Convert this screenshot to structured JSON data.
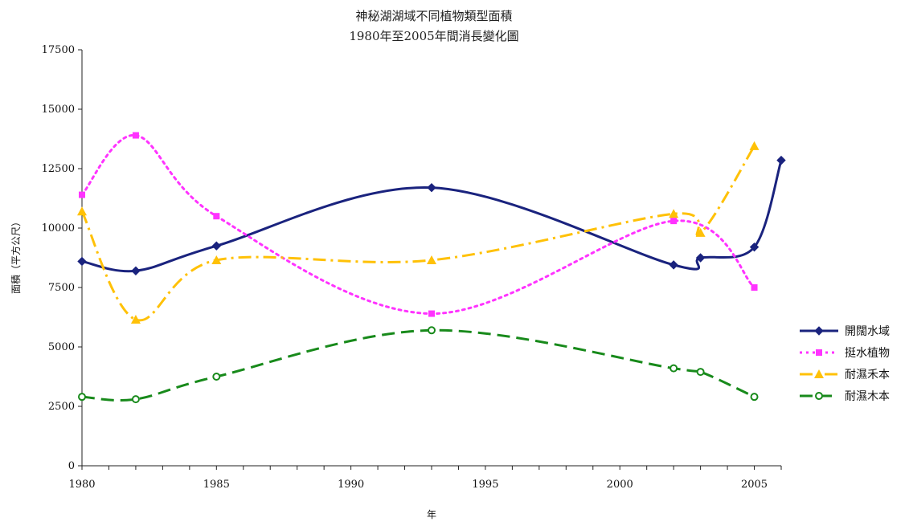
{
  "chart_data": {
    "type": "line",
    "title": "神秘湖湖域不同植物類型面積",
    "subtitle": "1980年至2005年間消長變化圖",
    "xlabel": "年",
    "ylabel": "面積（平方公尺）",
    "xlim": [
      1980,
      2006
    ],
    "ylim": [
      0,
      17500
    ],
    "xticks": [
      "1980",
      "1985",
      "1990",
      "1995",
      "2000",
      "2005"
    ],
    "yticks": [
      "0",
      "2500",
      "5000",
      "7500",
      "10000",
      "12500",
      "15000",
      "17500"
    ],
    "grid": false,
    "legend_position": "right",
    "series": [
      {
        "name": "開闊水域",
        "color": "#1a237e",
        "dash": "solid",
        "marker": "diamond",
        "x": [
          1980,
          1982,
          1985,
          1993,
          2002,
          2003,
          2005,
          2006
        ],
        "y": [
          8600,
          8200,
          9250,
          11700,
          8450,
          8750,
          9200,
          12850
        ]
      },
      {
        "name": "挺水植物",
        "color": "#ff33ff",
        "dash": "dotted",
        "marker": "square",
        "x": [
          1980,
          1982,
          1985,
          1993,
          2002,
          2005
        ],
        "y": [
          11400,
          13900,
          10500,
          6400,
          10300,
          7500
        ]
      },
      {
        "name": "耐濕禾本",
        "color": "#ffc107",
        "dash": "dashdot",
        "marker": "triangle",
        "x": [
          1980,
          1982,
          1985,
          1993,
          2002,
          2003,
          2005
        ],
        "y": [
          10700,
          6150,
          8650,
          8650,
          10600,
          9800,
          13450
        ]
      },
      {
        "name": "耐濕木本",
        "color": "#188a1b",
        "dash": "dashed",
        "marker": "circle",
        "x": [
          1980,
          1982,
          1985,
          1993,
          2002,
          2003,
          2005
        ],
        "y": [
          2900,
          2800,
          3750,
          5700,
          4100,
          3950,
          2900
        ]
      }
    ]
  }
}
